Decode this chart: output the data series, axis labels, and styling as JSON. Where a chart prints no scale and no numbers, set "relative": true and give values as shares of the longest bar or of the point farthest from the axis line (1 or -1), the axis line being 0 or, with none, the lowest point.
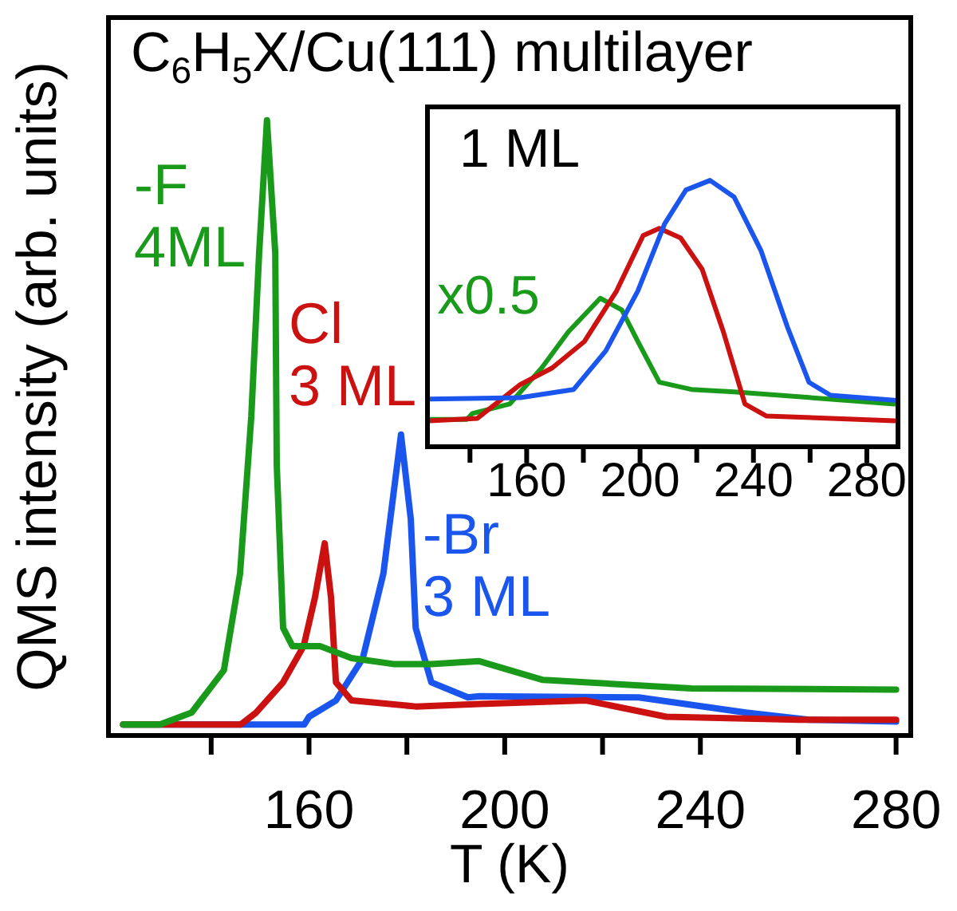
{
  "chart_data": [
    {
      "type": "line",
      "xlabel": "T (K)",
      "ylabel": "QMS intensity (arb. units)",
      "relative": true,
      "marker": "none",
      "tick_labels": "x",
      "legend": false,
      "annotations": [
        "C$_{6}$H$_{5}$X/Cu(111) multilayer"
      ],
      "xlim": [
        119,
        283
      ],
      "xticks": [
        {
          "value": 140,
          "label": null
        },
        160,
        {
          "value": 180,
          "label": null
        },
        200,
        {
          "value": 220,
          "label": null
        },
        240,
        {
          "value": 260,
          "label": null
        },
        280
      ],
      "series": [
        {
          "name": "-F 4ML",
          "color": "#1a9a1a",
          "x": [
            122,
            129.5,
            136,
            142.6,
            145.9,
            148.2,
            149.8,
            151.4,
            153.1,
            153.4,
            154.7,
            156.6,
            162.2,
            168.7,
            177.5,
            185,
            194.8,
            207.8,
            238.2,
            280
          ],
          "values": [
            0,
            0,
            0.02,
            0.09,
            0.25,
            0.51,
            0.78,
            1,
            0.78,
            0.43,
            0.16,
            0.13,
            0.13,
            0.11,
            0.1,
            0.1,
            0.105,
            0.074,
            0.06,
            0.058
          ]
        },
        {
          "name": "Cl 3 ML",
          "color": "#cc1111",
          "x": [
            122,
            146,
            149.2,
            154.7,
            158.9,
            161.2,
            163.2,
            164.5,
            165.5,
            168.7,
            181.8,
            194.8,
            216.6,
            233,
            260,
            280
          ],
          "values": [
            0,
            0,
            0.02,
            0.07,
            0.13,
            0.21,
            0.3,
            0.21,
            0.07,
            0.04,
            0.03,
            0.034,
            0.04,
            0.013,
            0.008,
            0.008
          ]
        },
        {
          "name": "-Br 3 ML",
          "color": "#1a55ee",
          "x": [
            122,
            159,
            160,
            165.5,
            171,
            175.2,
            178.8,
            180.8,
            181.8,
            185,
            192.5,
            194.8,
            227.4,
            249.3,
            262.2,
            280
          ],
          "values": [
            0,
            0,
            0.013,
            0.04,
            0.11,
            0.25,
            0.48,
            0.34,
            0.16,
            0.07,
            0.045,
            0.047,
            0.045,
            0.02,
            0.008,
            0.005
          ]
        }
      ]
    },
    {
      "type": "line",
      "relative": true,
      "marker": "none",
      "tick_labels": "x",
      "legend": false,
      "annotations": [
        "1 ML",
        {
          "text": "x0.5",
          "x": 186,
          "y": 0.556
        }
      ],
      "xlim": [
        125,
        291
      ],
      "xticks": [
        {
          "value": 140,
          "label": null
        },
        160,
        {
          "value": 180,
          "label": null
        },
        200,
        {
          "value": 220,
          "label": null
        },
        240,
        {
          "value": 260,
          "label": null
        },
        280
      ],
      "series": [
        {
          "color": "#1a55ee",
          "x": [
            125.7,
            157.7,
            176.6,
            187.9,
            199.2,
            208.7,
            216.2,
            224.7,
            233.2,
            242.6,
            252,
            259.6,
            267.2,
            289.8
          ],
          "values": [
            0.176,
            0.181,
            0.212,
            0.357,
            0.583,
            0.837,
            0.964,
            1,
            0.937,
            0.737,
            0.447,
            0.239,
            0.19,
            0.171
          ]
        },
        {
          "color": "#cc1111",
          "x": [
            125.7,
            142.6,
            157.7,
            169,
            180.4,
            191.7,
            201.1,
            206.8,
            214.3,
            221.9,
            229.4,
            237,
            244.5,
            289.8
          ],
          "values": [
            0.094,
            0.103,
            0.23,
            0.293,
            0.393,
            0.583,
            0.792,
            0.819,
            0.783,
            0.665,
            0.429,
            0.157,
            0.112,
            0.094
          ]
        },
        {
          "color": "#1a9a1a",
          "x": [
            125.7,
            138.9,
            140.8,
            154,
            165.3,
            174.7,
            186,
            193.6,
            199.2,
            206.8,
            218.1,
            233.2,
            289.8
          ],
          "values": [
            0.099,
            0.099,
            0.121,
            0.157,
            0.293,
            0.429,
            0.556,
            0.511,
            0.393,
            0.239,
            0.212,
            0.203,
            0.157
          ]
        }
      ]
    }
  ]
}
